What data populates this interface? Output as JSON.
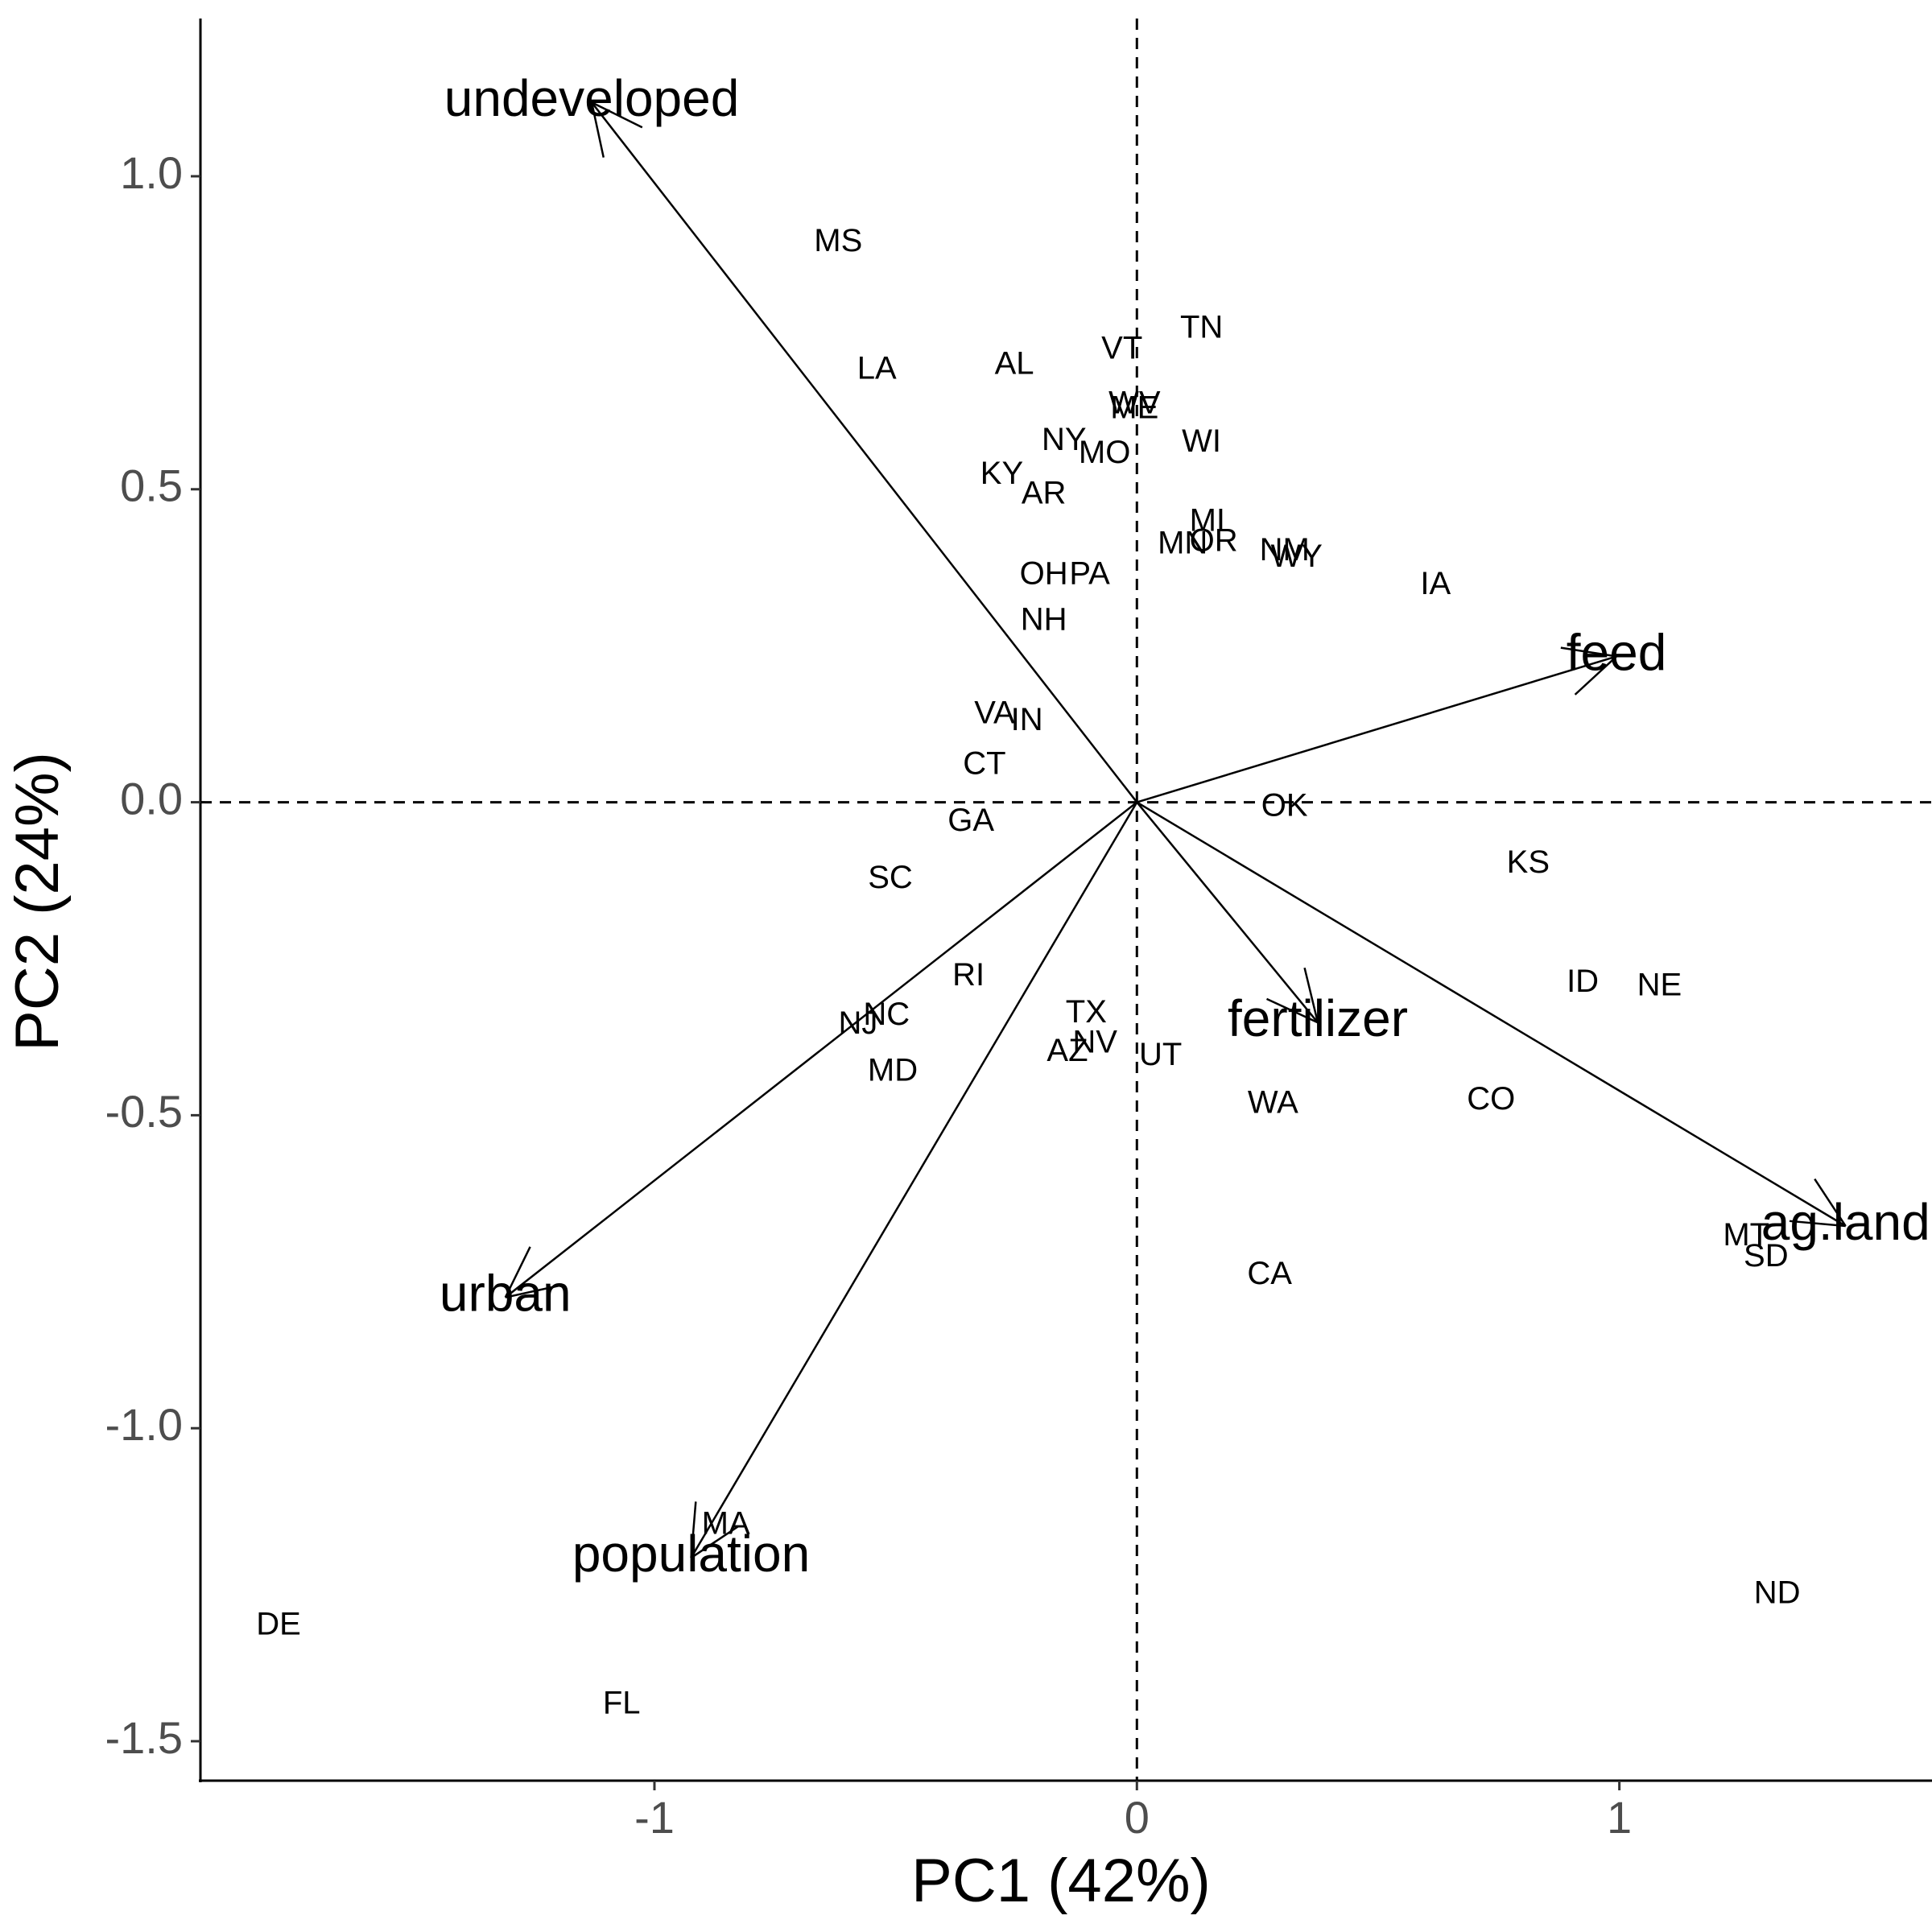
{
  "chart_data": {
    "type": "biplot",
    "x_label": "PC1 (42%)",
    "y_label": "PC2 (24%)",
    "xlim": [
      -1.941,
      1.628
    ],
    "ylim": [
      -1.563,
      1.252
    ],
    "xticks": [
      -1,
      0,
      1
    ],
    "yticks": [
      -1.5,
      {
        "value": -1,
        "label": "-1.0"
      },
      -0.5,
      {
        "value": 0,
        "label": "0.0"
      },
      0.5,
      {
        "value": 1,
        "label": "1.0"
      }
    ],
    "vline": 0,
    "hline": 0,
    "points": {
      "labels": [
        "MS",
        "LA",
        "AL",
        "VT",
        "TN",
        "WV",
        "ME",
        "NY",
        "MO",
        "WI",
        "KY",
        "AR",
        "MI",
        "MN",
        "OR",
        "NM",
        "WY",
        "IA",
        "OH",
        "PA",
        "NH",
        "VA",
        "IN",
        "CT",
        "GA",
        "OK",
        "KS",
        "SC",
        "RI",
        "ID",
        "NE",
        "NC",
        "NJ",
        "TX",
        "NV",
        "AZ",
        "UT",
        "MD",
        "WA",
        "CO",
        "MT",
        "SD",
        "CA",
        "MA",
        "ND",
        "DE",
        "FL"
      ],
      "x": [
        -0.619,
        -0.539,
        -0.254,
        -0.031,
        0.134,
        -0.005,
        -0.005,
        -0.151,
        -0.067,
        0.134,
        -0.28,
        -0.193,
        0.146,
        0.095,
        0.159,
        0.306,
        0.331,
        0.619,
        -0.193,
        -0.098,
        -0.193,
        -0.295,
        -0.228,
        -0.316,
        -0.344,
        0.306,
        0.811,
        -0.511,
        -0.349,
        0.924,
        1.083,
        -0.519,
        -0.578,
        -0.105,
        -0.087,
        -0.144,
        0.049,
        -0.506,
        0.282,
        0.734,
        1.263,
        1.304,
        0.275,
        -0.852,
        1.327,
        -1.779,
        -1.068
      ],
      "y": [
        0.894,
        0.69,
        0.698,
        0.722,
        0.756,
        0.635,
        0.627,
        0.576,
        0.556,
        0.574,
        0.522,
        0.491,
        0.447,
        0.411,
        0.415,
        0.4,
        0.39,
        0.346,
        0.362,
        0.362,
        0.289,
        0.14,
        0.129,
        0.059,
        -0.032,
        -0.008,
        -0.099,
        -0.123,
        -0.279,
        -0.289,
        -0.295,
        -0.342,
        -0.356,
        -0.338,
        -0.386,
        -0.4,
        -0.406,
        -0.431,
        -0.483,
        -0.477,
        -0.694,
        -0.728,
        -0.756,
        -1.155,
        -1.266,
        -1.316,
        -1.442
      ]
    },
    "loadings": {
      "labels": [
        "undeveloped",
        "feed",
        "ag.land",
        "fertilizer",
        "urban",
        "population"
      ],
      "x": [
        -1.13,
        0.994,
        1.469,
        0.375,
        -1.309,
        -0.924
      ],
      "y": [
        1.118,
        0.233,
        -0.677,
        -0.352,
        -0.791,
        -1.207
      ]
    }
  }
}
